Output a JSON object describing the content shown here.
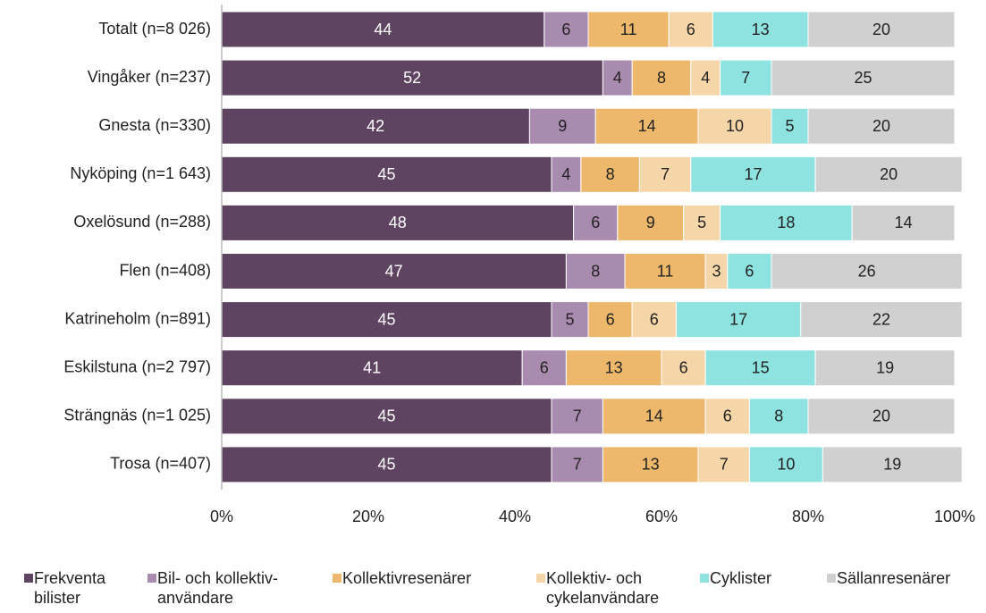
{
  "chart_data": {
    "type": "stacked-bar-horizontal",
    "categories": [
      "Totalt (n=8 026)",
      "Vingåker (n=237)",
      "Gnesta (n=330)",
      "Nyköping (n=1 643)",
      "Oxelösund (n=288)",
      "Flen (n=408)",
      "Katrineholm (n=891)",
      "Eskilstuna (n=2 797)",
      "Strängnäs (n=1 025)",
      "Trosa (n=407)"
    ],
    "series": [
      {
        "name": "Frekventa bilister",
        "color": "#5f4462",
        "values": [
          44,
          52,
          42,
          45,
          48,
          47,
          45,
          41,
          45,
          45
        ]
      },
      {
        "name": "Bil- och kollektiv-användare",
        "color": "#a98bb0",
        "values": [
          6,
          4,
          9,
          4,
          6,
          8,
          5,
          6,
          7,
          7
        ]
      },
      {
        "name": "Kollektivresenärer",
        "color": "#edb86b",
        "values": [
          11,
          8,
          14,
          8,
          9,
          11,
          6,
          13,
          14,
          13
        ]
      },
      {
        "name": "Kollektiv- och cykelanvändare",
        "color": "#f5d6a8",
        "values": [
          6,
          4,
          10,
          7,
          5,
          3,
          6,
          6,
          6,
          7
        ]
      },
      {
        "name": "Cyklister",
        "color": "#8ee3e0",
        "values": [
          13,
          7,
          5,
          17,
          18,
          6,
          17,
          15,
          8,
          10
        ]
      },
      {
        "name": "Sällanresenärer",
        "color": "#d0d0d0",
        "values": [
          20,
          25,
          20,
          20,
          14,
          26,
          22,
          19,
          20,
          19
        ]
      }
    ],
    "xlim": [
      0,
      100
    ],
    "xticks": [
      {
        "value": 0,
        "label": "0%"
      },
      {
        "value": 20,
        "label": "20%"
      },
      {
        "value": 40,
        "label": "40%"
      },
      {
        "value": 60,
        "label": "60%"
      },
      {
        "value": 80,
        "label": "80%"
      },
      {
        "value": 100,
        "label": "100%"
      }
    ],
    "legend": "bottom"
  }
}
